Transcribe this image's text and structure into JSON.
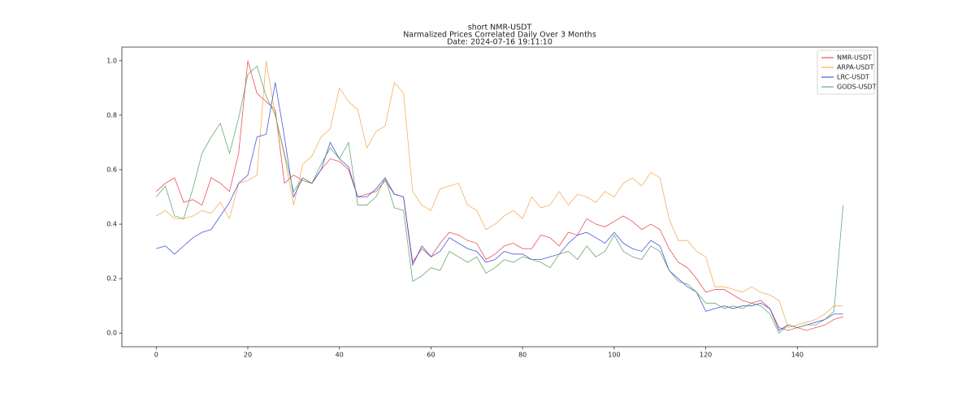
{
  "chart_data": {
    "type": "line",
    "title": "short NMR-USDT",
    "subtitle": "Narmalized Prices Correlated Daily Over 3 Months",
    "date": "Date: 2024-07-16 19:11:10",
    "x": [
      0,
      2,
      4,
      6,
      8,
      10,
      12,
      14,
      16,
      18,
      20,
      22,
      24,
      26,
      28,
      30,
      32,
      34,
      36,
      38,
      40,
      42,
      44,
      46,
      48,
      50,
      52,
      54,
      56,
      58,
      60,
      62,
      64,
      66,
      68,
      70,
      72,
      74,
      76,
      78,
      80,
      82,
      84,
      86,
      88,
      90,
      92,
      94,
      96,
      98,
      100,
      102,
      104,
      106,
      108,
      110,
      112,
      114,
      116,
      118,
      120,
      122,
      124,
      126,
      128,
      130,
      132,
      134,
      136,
      138,
      140,
      142,
      144,
      146,
      148,
      150
    ],
    "series": [
      {
        "name": "NMR-USDT",
        "color": "#e8333a",
        "values": [
          0.52,
          0.55,
          0.57,
          0.48,
          0.49,
          0.47,
          0.57,
          0.55,
          0.52,
          0.66,
          1.0,
          0.88,
          0.85,
          0.82,
          0.55,
          0.58,
          0.56,
          0.55,
          0.6,
          0.64,
          0.63,
          0.6,
          0.5,
          0.51,
          0.52,
          0.56,
          0.51,
          0.5,
          0.26,
          0.31,
          0.28,
          0.33,
          0.37,
          0.36,
          0.34,
          0.33,
          0.27,
          0.29,
          0.32,
          0.33,
          0.31,
          0.31,
          0.36,
          0.35,
          0.32,
          0.37,
          0.36,
          0.42,
          0.4,
          0.39,
          0.41,
          0.43,
          0.41,
          0.38,
          0.4,
          0.38,
          0.31,
          0.26,
          0.24,
          0.2,
          0.15,
          0.16,
          0.16,
          0.14,
          0.12,
          0.11,
          0.12,
          0.09,
          0.02,
          0.01,
          0.02,
          0.01,
          0.02,
          0.03,
          0.05,
          0.06
        ]
      },
      {
        "name": "ARPA-USDT",
        "color": "#f5a142",
        "values": [
          0.43,
          0.45,
          0.42,
          0.42,
          0.43,
          0.45,
          0.44,
          0.48,
          0.42,
          0.55,
          0.56,
          0.58,
          1.0,
          0.8,
          0.65,
          0.47,
          0.62,
          0.65,
          0.72,
          0.75,
          0.9,
          0.85,
          0.82,
          0.68,
          0.74,
          0.76,
          0.92,
          0.88,
          0.52,
          0.47,
          0.45,
          0.53,
          0.54,
          0.55,
          0.47,
          0.45,
          0.38,
          0.4,
          0.43,
          0.45,
          0.42,
          0.5,
          0.46,
          0.47,
          0.52,
          0.47,
          0.51,
          0.5,
          0.48,
          0.52,
          0.5,
          0.55,
          0.57,
          0.54,
          0.59,
          0.57,
          0.42,
          0.34,
          0.34,
          0.3,
          0.28,
          0.17,
          0.17,
          0.16,
          0.15,
          0.17,
          0.15,
          0.14,
          0.12,
          0.02,
          0.03,
          0.04,
          0.05,
          0.07,
          0.1,
          0.1
        ]
      },
      {
        "name": "LRC-USDT",
        "color": "#2b3bd6",
        "values": [
          0.31,
          0.32,
          0.29,
          0.32,
          0.35,
          0.37,
          0.38,
          0.43,
          0.48,
          0.55,
          0.58,
          0.72,
          0.73,
          0.92,
          0.72,
          0.5,
          0.57,
          0.55,
          0.6,
          0.7,
          0.64,
          0.61,
          0.5,
          0.5,
          0.53,
          0.57,
          0.51,
          0.5,
          0.25,
          0.32,
          0.28,
          0.3,
          0.35,
          0.33,
          0.31,
          0.3,
          0.26,
          0.27,
          0.3,
          0.29,
          0.29,
          0.27,
          0.27,
          0.28,
          0.29,
          0.33,
          0.36,
          0.37,
          0.35,
          0.33,
          0.37,
          0.33,
          0.31,
          0.3,
          0.34,
          0.32,
          0.23,
          0.2,
          0.17,
          0.15,
          0.08,
          0.09,
          0.1,
          0.09,
          0.1,
          0.1,
          0.11,
          0.09,
          0.01,
          0.03,
          0.02,
          0.03,
          0.04,
          0.05,
          0.07,
          0.07
        ]
      },
      {
        "name": "GODS-USDT",
        "color": "#4e9a5a",
        "values": [
          0.5,
          0.54,
          0.43,
          0.42,
          0.53,
          0.66,
          0.72,
          0.77,
          0.66,
          0.79,
          0.95,
          0.98,
          0.87,
          0.8,
          0.66,
          0.52,
          0.57,
          0.55,
          0.62,
          0.68,
          0.64,
          0.7,
          0.47,
          0.47,
          0.5,
          0.57,
          0.46,
          0.45,
          0.19,
          0.21,
          0.24,
          0.23,
          0.3,
          0.28,
          0.26,
          0.28,
          0.22,
          0.24,
          0.27,
          0.26,
          0.28,
          0.27,
          0.26,
          0.24,
          0.29,
          0.3,
          0.27,
          0.32,
          0.28,
          0.3,
          0.36,
          0.3,
          0.28,
          0.27,
          0.32,
          0.3,
          0.23,
          0.19,
          0.18,
          0.15,
          0.11,
          0.11,
          0.09,
          0.1,
          0.09,
          0.11,
          0.1,
          0.07,
          0.0,
          0.03,
          0.02,
          0.03,
          0.03,
          0.05,
          0.08,
          0.47
        ]
      }
    ],
    "xlim": [
      -7.5,
      157.5
    ],
    "ylim": [
      -0.05,
      1.05
    ],
    "xticks": [
      0,
      20,
      40,
      60,
      80,
      100,
      120,
      140
    ],
    "yticks": [
      {
        "value": 0,
        "label": "0.0"
      },
      0.2,
      0.4,
      0.6,
      0.8,
      {
        "value": 1,
        "label": "1.0"
      }
    ],
    "legend": "upper right"
  }
}
